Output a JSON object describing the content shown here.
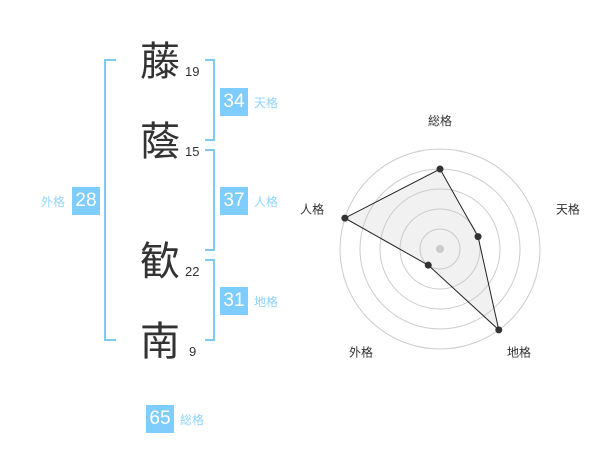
{
  "colors": {
    "accent": "#7fcdfd",
    "label": "#8fd3ff",
    "bracket": "#80c8f0",
    "text": "#333333"
  },
  "name": {
    "chars": [
      {
        "char": "藤",
        "strokes": "19"
      },
      {
        "char": "蔭",
        "strokes": "15"
      },
      {
        "char": "歓",
        "strokes": "22"
      },
      {
        "char": "南",
        "strokes": "9"
      }
    ]
  },
  "fortunes": {
    "tenkaku": {
      "label": "天格",
      "value": "34"
    },
    "jinkaku": {
      "label": "人格",
      "value": "37"
    },
    "chikaku": {
      "label": "地格",
      "value": "31"
    },
    "gaikaku": {
      "label": "外格",
      "value": "28"
    },
    "soukaku": {
      "label": "総格",
      "value": "65"
    }
  },
  "chart_data": {
    "type": "radar",
    "axes": [
      "総格",
      "天格",
      "地格",
      "外格",
      "人格"
    ],
    "values": [
      4,
      2,
      5,
      1,
      5
    ],
    "range": [
      0,
      5
    ],
    "rings": 5
  }
}
